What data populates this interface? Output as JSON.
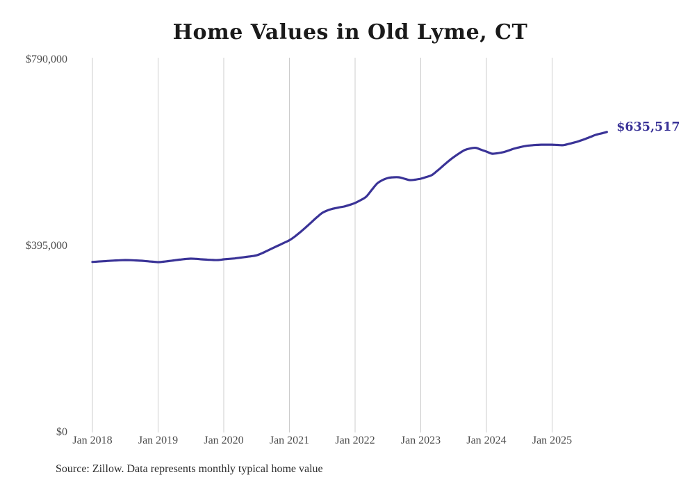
{
  "page": {
    "title": "Home Values in Old Lyme, CT",
    "source_note": "Source: Zillow. Data represents monthly typical home value"
  },
  "chart_data": {
    "type": "line",
    "title": "Home Values in Old Lyme, CT",
    "series_name": "Monthly typical home value",
    "x_start": "2018-01",
    "x_step_months": 1,
    "x_end": "2025-11",
    "x_tick_labels": [
      "Jan 2018",
      "Jan 2019",
      "Jan 2020",
      "Jan 2021",
      "Jan 2022",
      "Jan 2023",
      "Jan 2024",
      "Jan 2025"
    ],
    "y_ticks": [
      {
        "label": "$0",
        "value": 0
      },
      {
        "label": "$395,000",
        "value": 395000
      },
      {
        "label": "$790,000",
        "value": 790000
      }
    ],
    "ylim": [
      0,
      790000
    ],
    "grid": "vertical-only",
    "legend": "none",
    "line_color": "#3a3397",
    "grid_color": "#cccccc",
    "axis_label_color": "#4c4c4c",
    "last_value": 635517,
    "last_value_label": "$635,517",
    "values": [
      360000,
      360800,
      361500,
      362300,
      363000,
      363600,
      364000,
      363800,
      363200,
      362600,
      361500,
      360500,
      359600,
      360500,
      362000,
      363500,
      365000,
      366200,
      367000,
      366500,
      365500,
      364800,
      364200,
      364000,
      365500,
      366500,
      367500,
      369000,
      370500,
      372000,
      374000,
      378500,
      384000,
      389500,
      395000,
      400500,
      406000,
      414000,
      423500,
      433500,
      444000,
      454500,
      464000,
      469500,
      473000,
      475500,
      477500,
      481000,
      485000,
      491000,
      498000,
      512000,
      526000,
      533500,
      538000,
      539500,
      539500,
      536500,
      533500,
      534500,
      536500,
      540000,
      544000,
      553000,
      563000,
      573000,
      582000,
      590000,
      597000,
      600500,
      602000,
      598000,
      594000,
      589500,
      590500,
      592500,
      596000,
      600000,
      603000,
      605500,
      607000,
      608000,
      608500,
      608500,
      608500,
      608000,
      607500,
      610000,
      613000,
      616500,
      620500,
      625000,
      629500,
      632500,
      635517
    ]
  }
}
